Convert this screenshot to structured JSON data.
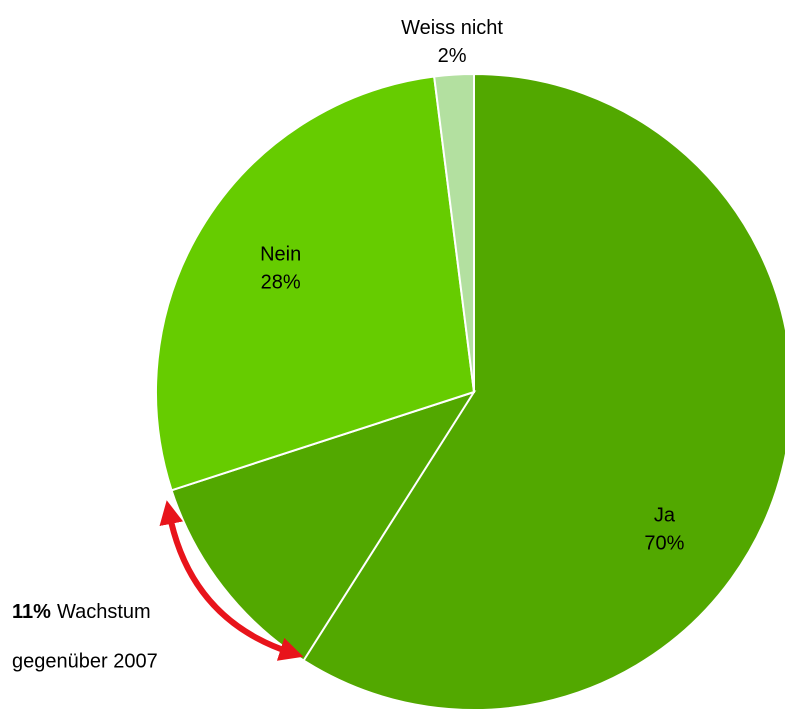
{
  "chart_data": {
    "type": "pie",
    "categories": [
      "Ja",
      "Nein",
      "Weiss nicht"
    ],
    "values": [
      70,
      28,
      2
    ],
    "value_labels": [
      "70%",
      "28%",
      "2%"
    ],
    "colors": [
      "#52a800",
      "#66cc00",
      "#b3e0a0"
    ],
    "annotation": {
      "value": 11,
      "label": "11%",
      "text": "Wachstum",
      "text2": "gegenüber 2007"
    }
  }
}
